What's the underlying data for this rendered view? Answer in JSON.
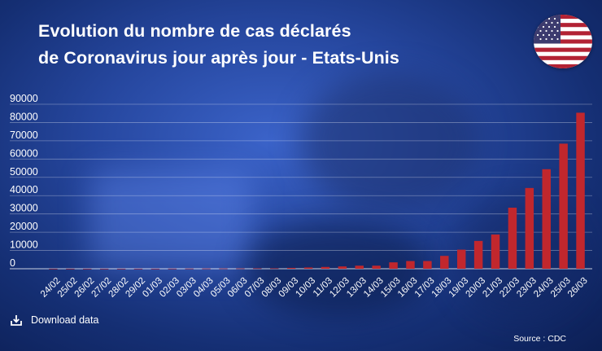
{
  "title": {
    "line1": "Evolution du nombre de cas déclarés",
    "line2": "de Coronavirus jour après jour - Etats-Unis"
  },
  "flag": {
    "icon": "us-flag-icon"
  },
  "download": {
    "label": "Download data",
    "icon": "download-icon"
  },
  "source": "Source : CDC",
  "colors": {
    "bar": "#c1272d",
    "grid": "#ffffff",
    "text": "#ffffff"
  },
  "chart_data": {
    "type": "bar",
    "categories": [
      "24/02",
      "25/02",
      "26/02",
      "27/02",
      "28/02",
      "29/02",
      "01/03",
      "02/03",
      "03/03",
      "04/03",
      "05/03",
      "06/03",
      "07/03",
      "08/03",
      "09/03",
      "10/03",
      "11/03",
      "12/03",
      "13/03",
      "14/03",
      "15/03",
      "16/03",
      "17/03",
      "18/03",
      "19/03",
      "20/03",
      "21/03",
      "22/03",
      "23/03",
      "24/03",
      "25/03",
      "26/03"
    ],
    "values": [
      15,
      15,
      15,
      16,
      16,
      24,
      30,
      53,
      80,
      108,
      129,
      148,
      213,
      213,
      472,
      696,
      987,
      1264,
      1678,
      1678,
      3499,
      4226,
      4226,
      7038,
      10442,
      15219,
      18747,
      33404,
      44183,
      54453,
      68440,
      85356
    ],
    "yticks": [
      0,
      10000,
      20000,
      30000,
      40000,
      50000,
      60000,
      70000,
      80000,
      90000
    ],
    "ylim": [
      0,
      90000
    ],
    "grid": true,
    "legend": "none"
  }
}
